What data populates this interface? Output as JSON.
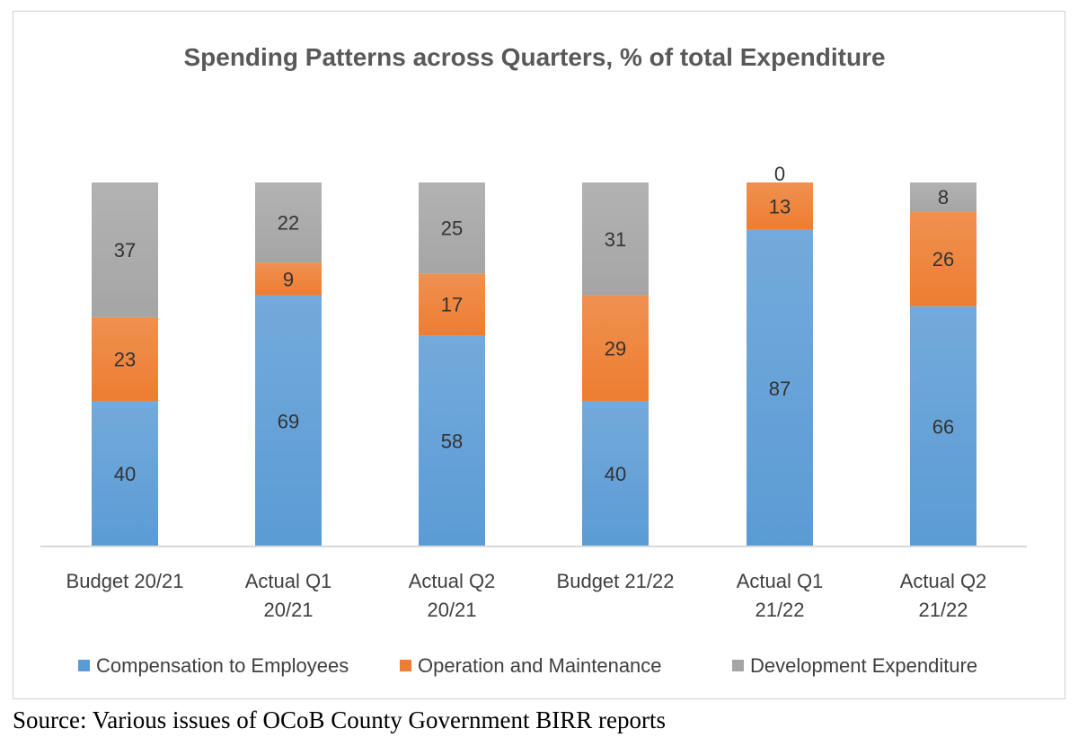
{
  "chart_data": {
    "type": "bar",
    "stacked": true,
    "title": "Spending Patterns across Quarters, % of total Expenditure",
    "categories": [
      [
        "Budget 20/21"
      ],
      [
        "Actual Q1",
        "20/21"
      ],
      [
        "Actual Q2",
        "20/21"
      ],
      [
        "Budget 21/22"
      ],
      [
        "Actual Q1",
        "21/22"
      ],
      [
        "Actual Q2",
        "21/22"
      ]
    ],
    "series": [
      {
        "name": "Compensation to Employees",
        "color": "#5B9BD5",
        "values": [
          40,
          69,
          58,
          40,
          87,
          66
        ]
      },
      {
        "name": "Operation and Maintenance",
        "color": "#ED7D31",
        "values": [
          23,
          9,
          17,
          29,
          13,
          26
        ]
      },
      {
        "name": "Development Expenditure",
        "color": "#A5A5A5",
        "values": [
          37,
          22,
          25,
          31,
          0,
          8
        ]
      }
    ],
    "ylim": [
      0,
      100
    ],
    "grid": false,
    "legend": "bottom"
  },
  "source": "Source: Various issues of OCoB County Government BIRR reports"
}
